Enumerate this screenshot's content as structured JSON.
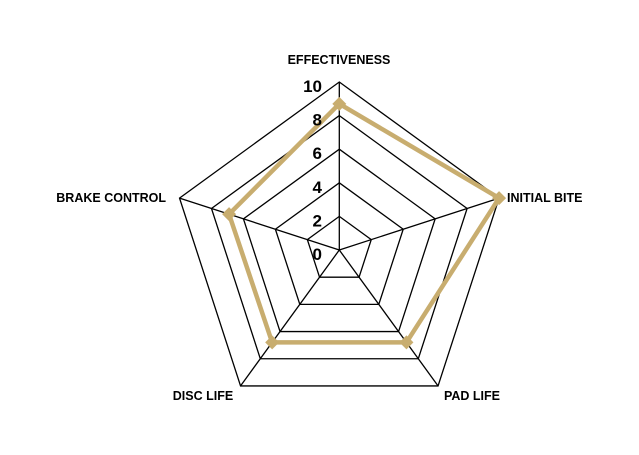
{
  "chart_data": {
    "type": "radar",
    "categories": [
      "EFFECTIVENESS",
      "INITIAL BITE",
      "PAD LIFE",
      "DISC LIFE",
      "BRAKE CONTROL"
    ],
    "values": [
      8.7,
      10,
      6.8,
      6.8,
      6.9
    ],
    "rlim": [
      0,
      10
    ],
    "ticks": [
      "0",
      "2",
      "4",
      "6",
      "8",
      "10"
    ],
    "tick_values": [
      0,
      2,
      4,
      6,
      8,
      10
    ],
    "grid": true,
    "series_color": "#c8ad6f",
    "grid_color": "#000000"
  }
}
